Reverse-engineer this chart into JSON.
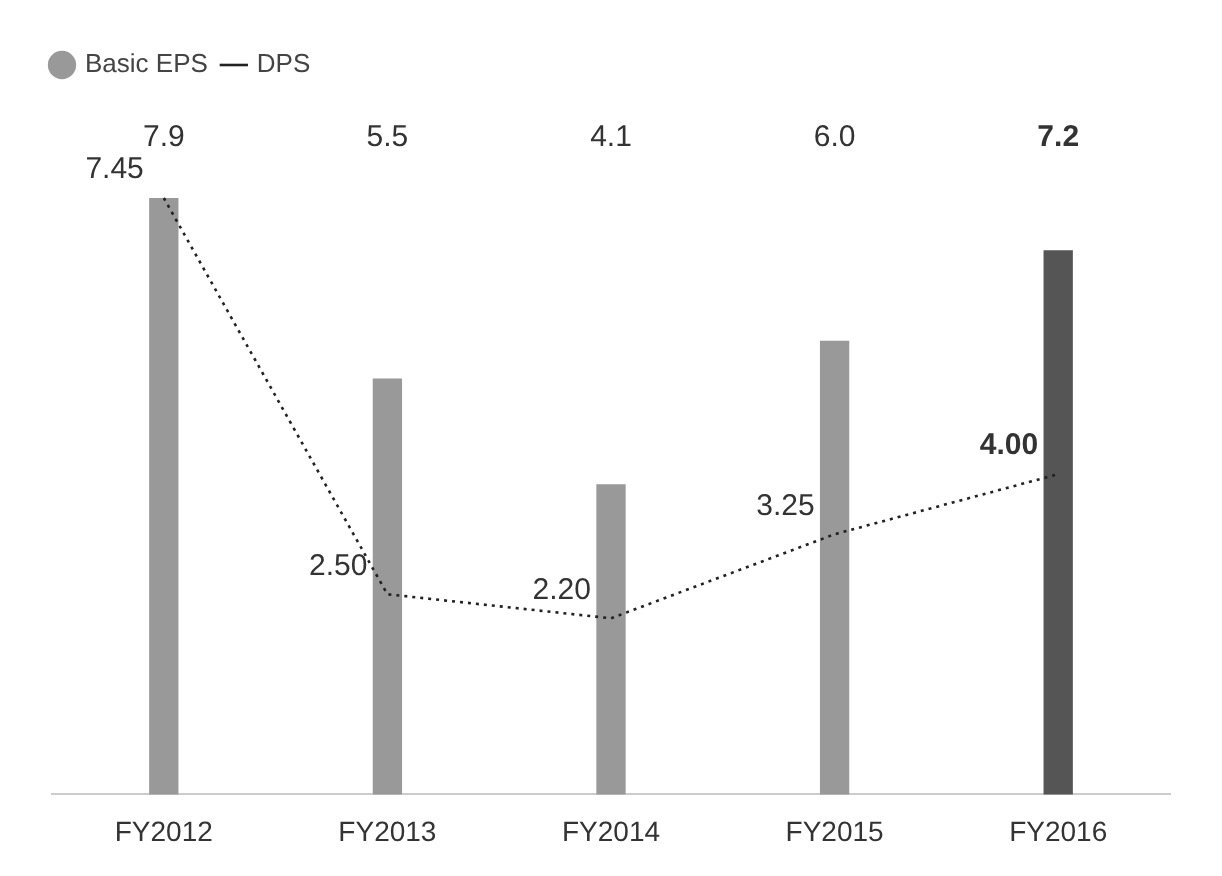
{
  "chart_data": {
    "type": "bar",
    "categories": [
      "FY2012",
      "FY2013",
      "FY2014",
      "FY2015",
      "FY2016"
    ],
    "tick_labels": "x",
    "legend": "top left",
    "grid": false,
    "series": [
      {
        "name": "Basic EPS",
        "colors": [
          "#999999",
          "#999999",
          "#999999",
          "#999999",
          "#555555"
        ],
        "values": [
          7.9,
          5.5,
          4.1,
          6.0,
          7.2
        ],
        "value_labels": [
          "7.9",
          "5.5",
          "4.1",
          "6.0",
          "7.2"
        ]
      },
      {
        "name": "DPS",
        "type": "line",
        "axis": "y2",
        "color": "#222222",
        "line_style": "dotted",
        "marker": "none",
        "values": [
          7.45,
          2.5,
          2.2,
          3.25,
          4.0
        ],
        "value_labels": [
          "7.45",
          "2.50",
          "2.20",
          "3.25",
          "4.00"
        ]
      }
    ]
  }
}
